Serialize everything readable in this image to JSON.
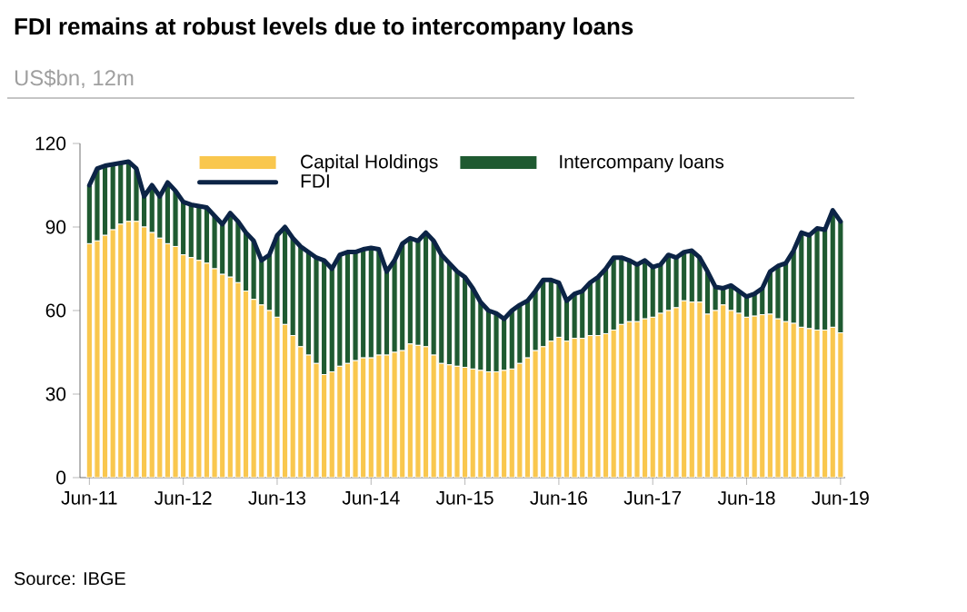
{
  "chart_data": {
    "type": "bar",
    "stacked": true,
    "title": "FDI remains at robust levels due to intercompany loans",
    "subtitle": "US$bn, 12m",
    "annotations": [
      "Source: IBGE"
    ],
    "categories": [
      "Jun-11",
      null,
      null,
      null,
      null,
      null,
      null,
      null,
      null,
      null,
      null,
      null,
      "Jun-12",
      null,
      null,
      null,
      null,
      null,
      null,
      null,
      null,
      null,
      null,
      null,
      "Jun-13",
      null,
      null,
      null,
      null,
      null,
      null,
      null,
      null,
      null,
      null,
      null,
      "Jun-14",
      null,
      null,
      null,
      null,
      null,
      null,
      null,
      null,
      null,
      null,
      null,
      "Jun-15",
      null,
      null,
      null,
      null,
      null,
      null,
      null,
      null,
      null,
      null,
      null,
      "Jun-16",
      null,
      null,
      null,
      null,
      null,
      null,
      null,
      null,
      null,
      null,
      null,
      "Jun-17",
      null,
      null,
      null,
      null,
      null,
      null,
      null,
      null,
      null,
      null,
      null,
      "Jun-18",
      null,
      null,
      null,
      null,
      null,
      null,
      null,
      null,
      null,
      null,
      null,
      "Jun-19"
    ],
    "ylim": [
      0,
      120
    ],
    "yticks": [
      0,
      30,
      60,
      90,
      120
    ],
    "legend": "top",
    "series": [
      {
        "name": "Capital Holdings",
        "color": "#f9c74e",
        "values": [
          84,
          85,
          87,
          89,
          91,
          92,
          92,
          90,
          88,
          86,
          84,
          83,
          80,
          79,
          78,
          77,
          75,
          73,
          72,
          70,
          67,
          64,
          62,
          60,
          57.6,
          55,
          51,
          47,
          44,
          41,
          37,
          38,
          40,
          41,
          42,
          43,
          43,
          44,
          44,
          45,
          45.6,
          48,
          47.5,
          47,
          44,
          41,
          40.5,
          40,
          39.6,
          39,
          38.5,
          38,
          38,
          38.5,
          39,
          41,
          43,
          45.6,
          47,
          49,
          50.4,
          49,
          50,
          50,
          51,
          51,
          51.7,
          53,
          55,
          56,
          56,
          57,
          57.6,
          59,
          60,
          61,
          63.5,
          63,
          63,
          58.7,
          60,
          62,
          60,
          59,
          57.6,
          58,
          58.5,
          58.7,
          57,
          56,
          55.4,
          54,
          53.5,
          53,
          53,
          54,
          52
        ]
      },
      {
        "name": "Intercompany loans",
        "color": "#1f5a31",
        "values": [
          21,
          26,
          25,
          23.5,
          22,
          21.5,
          19,
          11,
          17,
          15,
          22,
          20,
          19,
          19,
          19.5,
          20,
          19,
          18,
          23,
          22,
          21,
          21,
          16,
          20,
          29.4,
          35,
          35,
          36,
          37,
          38,
          41,
          37,
          40,
          40,
          39,
          39,
          39.5,
          38,
          30,
          33,
          38.4,
          38,
          37.5,
          41,
          41,
          39,
          36.5,
          34,
          32.4,
          29,
          24.5,
          22,
          21,
          18.5,
          21,
          21,
          20.5,
          21.4,
          24,
          22,
          19.6,
          14.5,
          16,
          17,
          19,
          21,
          23.3,
          26,
          24,
          22,
          20.5,
          21,
          18,
          17.5,
          20,
          18,
          17.5,
          18.5,
          16,
          15.3,
          8.5,
          6,
          9,
          8,
          7.4,
          8,
          9.5,
          15.3,
          19,
          21,
          26.1,
          34,
          33.5,
          36.5,
          36,
          42,
          40
        ]
      },
      {
        "name": "FDI",
        "type": "line",
        "color": "#0c2446",
        "values": [
          105,
          111,
          112,
          112.5,
          113,
          113.5,
          111,
          101,
          105,
          101,
          106,
          103,
          99,
          98,
          97.5,
          97,
          94,
          91,
          95,
          92,
          88,
          85,
          78,
          80,
          87,
          90,
          86,
          83,
          81,
          79,
          78,
          75,
          80,
          81,
          81,
          82,
          82.5,
          82,
          74,
          78,
          84,
          86,
          85,
          88,
          85,
          80,
          77,
          74,
          72,
          68,
          63,
          60,
          59,
          57,
          60,
          62,
          63.5,
          67,
          71,
          71,
          70,
          63.5,
          66,
          67,
          70,
          72,
          75,
          79,
          79,
          78,
          76.5,
          78,
          75.6,
          76.5,
          80,
          79,
          81,
          81.5,
          79,
          74,
          68.5,
          68,
          69,
          67,
          65,
          66,
          68,
          74,
          76,
          77,
          81.5,
          88,
          87,
          89.5,
          89,
          96,
          92
        ]
      }
    ]
  }
}
